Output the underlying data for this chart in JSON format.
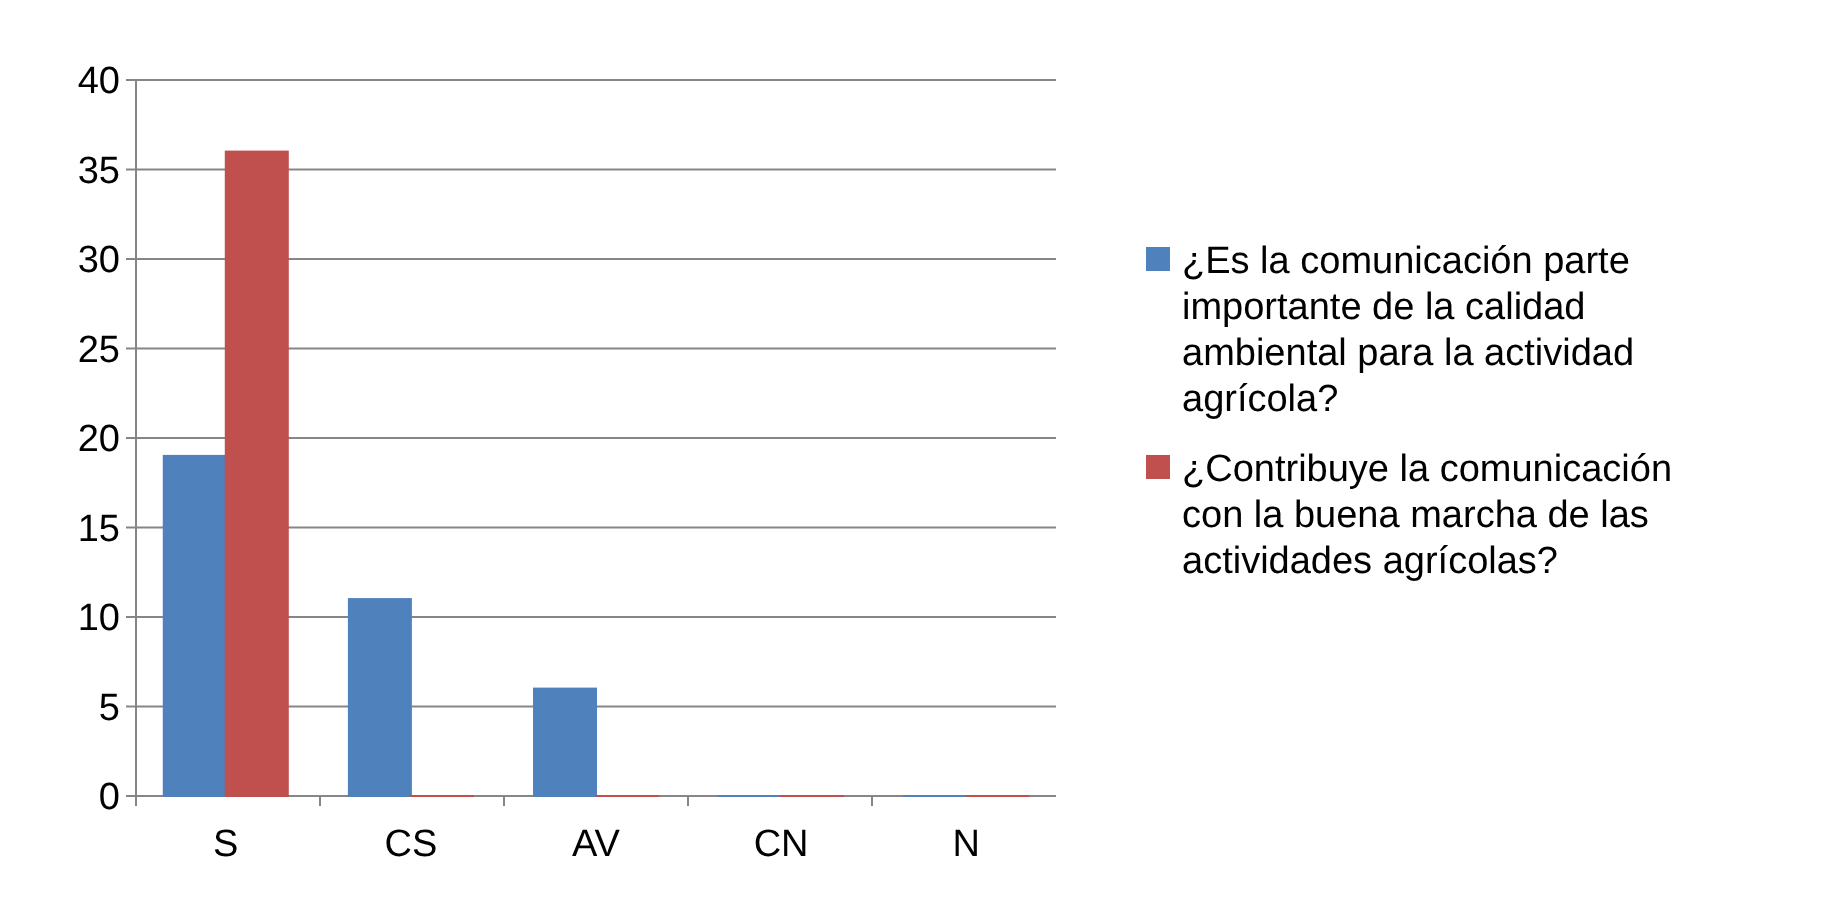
{
  "chart_data": {
    "type": "bar",
    "categories": [
      "S",
      "CS",
      "AV",
      "CN",
      "N"
    ],
    "series": [
      {
        "name": "¿Es la comunicación parte importante de la calidad ambiental para la actividad agrícola?",
        "color": "#4f81bd",
        "values": [
          19,
          11,
          6,
          0,
          0
        ]
      },
      {
        "name": "¿Contribuye la comunicación con la buena marcha de las actividades agrícolas?",
        "color": "#c0504d",
        "values": [
          36,
          0,
          0,
          0,
          0
        ]
      }
    ],
    "ylim": [
      0,
      40
    ],
    "yticks": [
      0,
      5,
      10,
      15,
      20,
      25,
      30,
      35,
      40
    ],
    "grid": "y",
    "legend": "right"
  }
}
